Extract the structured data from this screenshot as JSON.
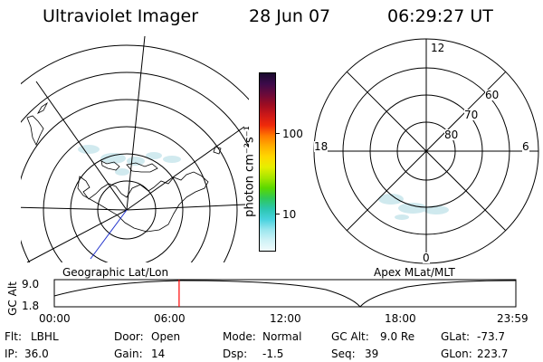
{
  "header": {
    "instrument": "Ultraviolet Imager",
    "date": "28 Jun 07",
    "time": "06:29:27 UT"
  },
  "geo_map": {
    "caption": "Geographic Lat/Lon"
  },
  "colorbar": {
    "unit_label": "photon cm⁻²s⁻¹",
    "ticks": [
      "100",
      "10"
    ],
    "colors": [
      "#1a0a2e",
      "#3c0a4a",
      "#6a0a3a",
      "#9c0c22",
      "#cc1818",
      "#f02a0a",
      "#ff7a00",
      "#ffb000",
      "#ffd800",
      "#e6ee00",
      "#a8e600",
      "#5ad800",
      "#2ec85a",
      "#2cc6b0",
      "#48d2de",
      "#9ae6ee",
      "#cef2f6",
      "#f0fafb"
    ]
  },
  "mag_map": {
    "caption": "Apex MLat/MLT",
    "mlt_labels": {
      "top": "12",
      "bottom": "0",
      "left": "18",
      "right": "6"
    },
    "lat_labels": [
      "60",
      "70",
      "80"
    ]
  },
  "altitude_plot": {
    "ylabel": "GC Alt",
    "ytick_top": "9.0",
    "ytick_bottom": "1.8",
    "xticks": [
      "00:00",
      "06:00",
      "12:00",
      "18:00",
      "23:59"
    ],
    "current_time_marker_hours": 6.49,
    "marker_color": "#ff0000"
  },
  "status": {
    "flt_label": "Flt:",
    "flt_value": "LBHL",
    "ip_label": "IP:",
    "ip_value": "36.0",
    "door_label": "Door:",
    "door_value": "Open",
    "gain_label": "Gain:",
    "gain_value": "14",
    "mode_label": "Mode:",
    "mode_value": "Normal",
    "dsp_label": "Dsp:",
    "dsp_value": "-1.5",
    "gcalt_label": "GC Alt:",
    "gcalt_value": "9.0 Re",
    "seq_label": "Seq:",
    "seq_value": "39",
    "glat_label": "GLat:",
    "glat_value": "-73.7",
    "glon_label": "GLon:",
    "glon_value": "223.7"
  }
}
